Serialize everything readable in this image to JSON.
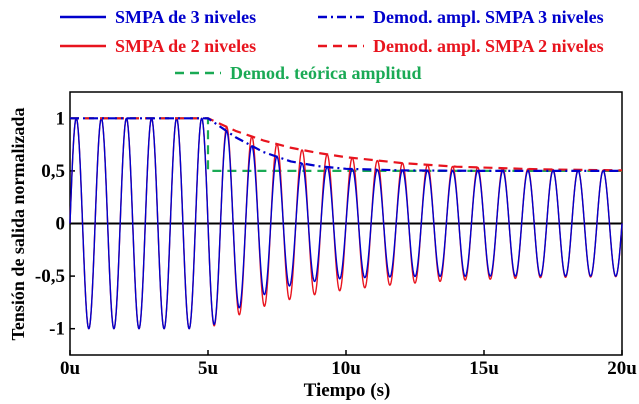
{
  "chart_data": {
    "type": "line",
    "xlabel": "Tiempo (s)",
    "ylabel": "Tensión de salida normalizada",
    "xlim": [
      0,
      20
    ],
    "ylim": [
      -1.25,
      1.25
    ],
    "x_unit": "u",
    "x_ticks": [
      {
        "value": 0,
        "label": "0u"
      },
      {
        "value": 5,
        "label": "5u"
      },
      {
        "value": 10,
        "label": "10u"
      },
      {
        "value": 15,
        "label": "15u"
      },
      {
        "value": 20,
        "label": "20u"
      }
    ],
    "y_ticks": [
      {
        "value": 1,
        "label": "1"
      },
      {
        "value": 0.5,
        "label": "0,5"
      },
      {
        "value": 0,
        "label": "0"
      },
      {
        "value": -0.5,
        "label": "-0,5"
      },
      {
        "value": -1,
        "label": "-1"
      }
    ],
    "zero_line": true,
    "legend_position": "top",
    "series": [
      {
        "name": "SMPA de 3 niveles",
        "color": "#0000cc",
        "style": "solid",
        "kind": "sine",
        "frequency_cycles_per_unit": 1.1,
        "amplitude_points": [
          [
            0,
            1
          ],
          [
            5,
            1
          ],
          [
            6,
            0.82
          ],
          [
            7,
            0.68
          ],
          [
            8,
            0.59
          ],
          [
            9,
            0.545
          ],
          [
            10,
            0.52
          ],
          [
            12,
            0.505
          ],
          [
            15,
            0.5
          ],
          [
            20,
            0.5
          ]
        ]
      },
      {
        "name": "Demod. ampl. SMPA 3 niveles",
        "color": "#0000cc",
        "style": "dash-dot",
        "kind": "envelope",
        "points": [
          [
            0,
            1
          ],
          [
            5,
            1
          ],
          [
            6,
            0.82
          ],
          [
            7,
            0.68
          ],
          [
            8,
            0.59
          ],
          [
            9,
            0.545
          ],
          [
            10,
            0.52
          ],
          [
            12,
            0.505
          ],
          [
            15,
            0.5
          ],
          [
            20,
            0.5
          ]
        ]
      },
      {
        "name": "SMPA de 2 niveles",
        "color": "#e8141e",
        "style": "solid",
        "kind": "sine",
        "frequency_cycles_per_unit": 1.1,
        "amplitude_points": [
          [
            0,
            1
          ],
          [
            5,
            1
          ],
          [
            6,
            0.88
          ],
          [
            7,
            0.79
          ],
          [
            8,
            0.72
          ],
          [
            9,
            0.67
          ],
          [
            10,
            0.63
          ],
          [
            12,
            0.575
          ],
          [
            14,
            0.54
          ],
          [
            17,
            0.515
          ],
          [
            20,
            0.505
          ]
        ]
      },
      {
        "name": "Demod. ampl. SMPA 2 niveles",
        "color": "#e8141e",
        "style": "dash",
        "kind": "envelope",
        "points": [
          [
            0,
            1
          ],
          [
            5,
            1
          ],
          [
            6,
            0.88
          ],
          [
            7,
            0.79
          ],
          [
            8,
            0.72
          ],
          [
            9,
            0.67
          ],
          [
            10,
            0.63
          ],
          [
            12,
            0.575
          ],
          [
            14,
            0.54
          ],
          [
            17,
            0.515
          ],
          [
            20,
            0.505
          ]
        ]
      },
      {
        "name": "Demod. teórica amplitud",
        "color": "#1aaa55",
        "style": "dash",
        "kind": "step",
        "points": [
          [
            0,
            1
          ],
          [
            5,
            1
          ],
          [
            5,
            0.5
          ],
          [
            20,
            0.5
          ]
        ]
      }
    ]
  },
  "legend": {
    "rows": [
      [
        {
          "label": "SMPA de 3 niveles",
          "color": "#0000cc",
          "style": "solid"
        },
        {
          "label": "Demod. ampl. SMPA 3 niveles",
          "color": "#0000cc",
          "style": "dash-dot"
        }
      ],
      [
        {
          "label": "SMPA de 2 niveles",
          "color": "#e8141e",
          "style": "solid"
        },
        {
          "label": "Demod. ampl. SMPA 2 niveles",
          "color": "#e8141e",
          "style": "dash"
        }
      ],
      [
        {
          "label": "Demod. teórica amplitud",
          "color": "#1aaa55",
          "style": "dash"
        }
      ]
    ]
  }
}
